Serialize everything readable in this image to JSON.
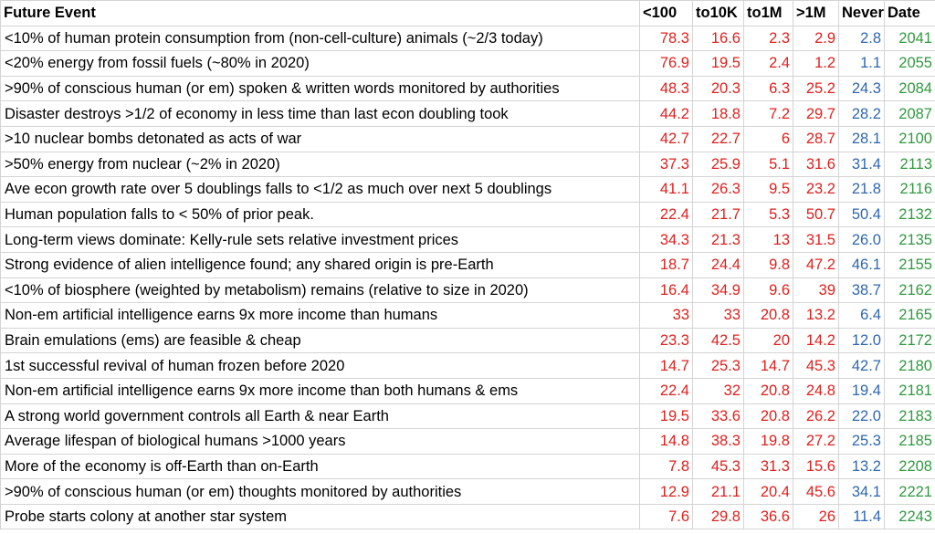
{
  "headers": [
    "Future Event",
    "<100",
    "to10K",
    "to1M",
    ">1M",
    "Never",
    "Date"
  ],
  "rows": [
    [
      "<10% of human protein consumption from (non-cell-culture) animals (~2/3 today)",
      "78.3",
      "16.6",
      "2.3",
      "2.9",
      "2.8",
      "2041"
    ],
    [
      "<20% energy from fossil fuels (~80% in 2020)",
      "76.9",
      "19.5",
      "2.4",
      "1.2",
      "1.1",
      "2055"
    ],
    [
      ">90% of conscious human (or em) spoken & written words monitored by authorities",
      "48.3",
      "20.3",
      "6.3",
      "25.2",
      "24.3",
      "2084"
    ],
    [
      "Disaster destroys >1/2 of economy in less time than last econ doubling took",
      "44.2",
      "18.8",
      "7.2",
      "29.7",
      "28.2",
      "2087"
    ],
    [
      ">10 nuclear bombs detonated as acts of war",
      "42.7",
      "22.7",
      "6",
      "28.7",
      "28.1",
      "2100"
    ],
    [
      ">50% energy from nuclear (~2% in 2020)",
      "37.3",
      "25.9",
      "5.1",
      "31.6",
      "31.4",
      "2113"
    ],
    [
      "Ave econ growth rate over 5 doublings falls to <1/2 as much over next 5 doublings",
      "41.1",
      "26.3",
      "9.5",
      "23.2",
      "21.8",
      "2116"
    ],
    [
      "Human population falls to < 50% of prior peak.",
      "22.4",
      "21.7",
      "5.3",
      "50.7",
      "50.4",
      "2132"
    ],
    [
      "Long-term views dominate: Kelly-rule sets relative investment prices",
      "34.3",
      "21.3",
      "13",
      "31.5",
      "26.0",
      "2135"
    ],
    [
      "Strong evidence of alien intelligence found; any shared origin is pre-Earth",
      "18.7",
      "24.4",
      "9.8",
      "47.2",
      "46.1",
      "2155"
    ],
    [
      "<10% of biosphere (weighted by metabolism) remains (relative to size in 2020)",
      "16.4",
      "34.9",
      "9.6",
      "39",
      "38.7",
      "2162"
    ],
    [
      "Non-em artificial intelligence earns 9x more income than humans",
      "33",
      "33",
      "20.8",
      "13.2",
      "6.4",
      "2165"
    ],
    [
      "Brain emulations (ems) are feasible & cheap",
      "23.3",
      "42.5",
      "20",
      "14.2",
      "12.0",
      "2172"
    ],
    [
      "1st successful revival of human frozen before 2020",
      "14.7",
      "25.3",
      "14.7",
      "45.3",
      "42.7",
      "2180"
    ],
    [
      "Non-em artificial intelligence earns 9x more income than both humans & ems",
      "22.4",
      "32",
      "20.8",
      "24.8",
      "19.4",
      "2181"
    ],
    [
      "A strong world government controls all Earth & near Earth",
      "19.5",
      "33.6",
      "20.8",
      "26.2",
      "22.0",
      "2183"
    ],
    [
      "Average lifespan of biological humans >1000 years",
      "14.8",
      "38.3",
      "19.8",
      "27.2",
      "25.3",
      "2185"
    ],
    [
      "More of the economy is off-Earth than on-Earth",
      "7.8",
      "45.3",
      "31.3",
      "15.6",
      "13.2",
      "2208"
    ],
    [
      ">90% of conscious human (or em) thoughts monitored by authorities",
      "12.9",
      "21.1",
      "20.4",
      "45.6",
      "34.1",
      "2221"
    ],
    [
      "Probe starts colony at another star system",
      "7.6",
      "29.8",
      "36.6",
      "26",
      "11.4",
      "2243"
    ]
  ],
  "colors": {
    "probability": "#e0201c",
    "never": "#2e67b1",
    "date": "#2f9a3f"
  }
}
